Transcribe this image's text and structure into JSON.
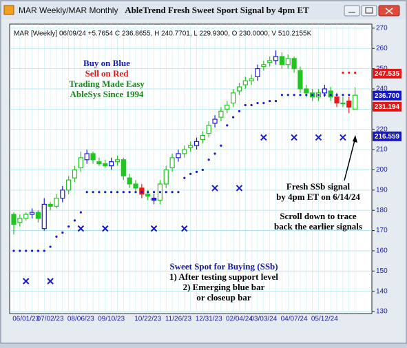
{
  "chart_data": {
    "type": "candlestick",
    "window_title": "MAR Weekly/MAR Monthly",
    "title": "AbleTrend Fresh Sweet Sport Signal by 4pm ET",
    "info": "MAR [Weekly] 06/09/24  +5.7654 C 236.8655, H 240.7701, L 229.9300, O 230.0000, V 510.2155K",
    "categories": [
      null,
      null,
      "06/01/23",
      null,
      null,
      null,
      "07/02/23",
      null,
      null,
      null,
      null,
      "08/06/23",
      null,
      null,
      null,
      null,
      "09/10/23",
      null,
      null,
      null,
      null,
      null,
      "10/22/23",
      null,
      null,
      null,
      null,
      "11/26/23",
      null,
      null,
      null,
      null,
      "12/31/23",
      null,
      null,
      null,
      null,
      "02/04/24",
      null,
      null,
      null,
      "03/03/24",
      null,
      null,
      null,
      null,
      "04/07/24",
      null,
      null,
      null,
      null,
      "05/12/24",
      null,
      null,
      null,
      null,
      null
    ],
    "open": [
      178,
      174,
      176,
      178,
      179,
      171,
      183,
      182,
      186,
      190,
      196,
      201,
      205,
      208,
      204,
      203,
      202,
      204,
      205,
      196,
      193,
      191,
      188,
      186,
      185,
      193,
      201,
      206,
      208,
      211,
      212,
      215,
      218,
      223,
      226,
      230,
      233,
      239,
      242,
      244,
      246,
      251,
      253,
      254,
      256,
      252,
      255,
      249,
      240,
      238,
      236,
      238,
      239,
      236,
      233,
      234,
      230
    ],
    "high": [
      179,
      178,
      179,
      181,
      180,
      186,
      184,
      188,
      192,
      197,
      202,
      209,
      210,
      209,
      206,
      205,
      206,
      207,
      206,
      198,
      195,
      193,
      190,
      188,
      195,
      202,
      208,
      210,
      212,
      214,
      216,
      219,
      224,
      227,
      231,
      234,
      240,
      243,
      246,
      247,
      252,
      254,
      256,
      259,
      258,
      257,
      256,
      251,
      242,
      240,
      240,
      242,
      241,
      238,
      236,
      236,
      240.7701
    ],
    "low": [
      168,
      172,
      175,
      176,
      174,
      170,
      180,
      181,
      184,
      188,
      194,
      199,
      203,
      203,
      202,
      201,
      200,
      202,
      195,
      191,
      189,
      186,
      185,
      183,
      183,
      191,
      199,
      204,
      206,
      209,
      210,
      213,
      216,
      221,
      224,
      228,
      231,
      237,
      240,
      242,
      244,
      249,
      251,
      252,
      250,
      250,
      248,
      238,
      236,
      234,
      234,
      236,
      234,
      231,
      231,
      228,
      229.93
    ],
    "close": [
      173,
      176,
      178,
      179,
      176,
      183,
      182,
      186,
      190,
      195,
      200,
      206,
      208,
      205,
      203,
      202,
      204,
      205,
      197,
      193,
      191,
      188,
      187,
      185,
      193,
      200,
      206,
      208,
      210,
      212,
      214,
      217,
      222,
      225,
      229,
      232,
      238,
      241,
      244,
      245,
      250,
      252,
      254,
      256,
      252,
      255,
      250,
      240,
      238,
      236,
      238,
      240,
      236,
      233,
      233,
      231,
      236.8655
    ],
    "bar_colors": [
      "#22c422",
      "#22c422",
      "#22c422",
      "#1818e0",
      "#22c422",
      "#1818e0",
      "#22c422",
      "#22c422",
      "#1818e0",
      "#22c422",
      "#22c422",
      "#22c422",
      "#1818e0",
      "#22c422",
      "#22c422",
      "#22c422",
      "#1818e0",
      "#22c422",
      "#22c422",
      "#22c422",
      "#22c422",
      "#e81818",
      "#22c422",
      "#1818e0",
      "#22c422",
      "#22c422",
      "#22c422",
      "#1818e0",
      "#22c422",
      "#22c422",
      "#1818e0",
      "#22c422",
      "#22c422",
      "#1818e0",
      "#22c422",
      "#22c422",
      "#22c422",
      "#22c422",
      "#22c422",
      "#22c422",
      "#1818e0",
      "#22c422",
      "#22c422",
      "#1818e0",
      "#22c422",
      "#22c422",
      "#22c422",
      "#22c422",
      "#22c422",
      "#22c422",
      "#22c422",
      "#1818e0",
      "#22c422",
      "#e81818",
      "#22c422",
      "#e81818",
      "#22c422"
    ],
    "support": [
      160,
      160,
      160,
      160,
      160,
      160,
      162,
      167,
      169,
      172,
      175,
      179,
      189,
      189,
      189,
      189,
      189,
      189,
      189,
      189,
      189,
      189,
      189,
      189,
      189,
      189,
      189,
      189,
      196,
      198,
      199,
      200,
      205,
      208,
      212,
      222,
      226,
      229,
      232,
      232,
      233,
      233,
      234,
      234,
      237,
      237,
      237,
      237,
      237,
      237,
      237,
      237,
      237,
      237,
      237,
      237,
      null
    ],
    "support_color": "#1818d0",
    "resistance": [
      null,
      null,
      null,
      null,
      null,
      null,
      null,
      null,
      null,
      null,
      null,
      null,
      null,
      null,
      null,
      null,
      null,
      null,
      null,
      null,
      null,
      null,
      null,
      null,
      null,
      null,
      null,
      null,
      null,
      null,
      null,
      null,
      null,
      null,
      null,
      null,
      null,
      null,
      null,
      null,
      null,
      null,
      null,
      null,
      null,
      null,
      null,
      null,
      null,
      null,
      null,
      null,
      null,
      null,
      248,
      248,
      248
    ],
    "resistance_color": "#e82020",
    "signals": [
      null,
      null,
      145,
      null,
      null,
      null,
      145,
      null,
      null,
      null,
      null,
      171,
      null,
      null,
      null,
      171,
      null,
      null,
      null,
      null,
      null,
      null,
      null,
      171,
      null,
      null,
      null,
      null,
      171,
      null,
      null,
      null,
      null,
      191,
      null,
      null,
      null,
      191,
      null,
      null,
      null,
      216,
      null,
      null,
      null,
      null,
      216,
      null,
      null,
      null,
      216,
      null,
      null,
      null,
      216,
      null,
      null
    ],
    "signal_color": "#1818c0",
    "ylim": [
      129,
      272
    ],
    "yticks": [
      130,
      140,
      150,
      160,
      170,
      180,
      190,
      200,
      210,
      220,
      230,
      240,
      250,
      260,
      270
    ],
    "grid": true,
    "price_labels": [
      {
        "value": 247.535,
        "label": "247.535",
        "color": "#e01818"
      },
      {
        "value": 236.7,
        "label": "236.700",
        "color": "#1818c0"
      },
      {
        "value": 231.194,
        "label": "231.194",
        "color": "#e01818"
      },
      {
        "value": 216.559,
        "label": "216.559",
        "color": "#1818c0"
      }
    ],
    "annotations": [
      {
        "text": "Buy on Blue",
        "color": "#1818c0"
      },
      {
        "text": "Sell on Red",
        "color": "#e01818"
      },
      {
        "text": "Trading Made Easy",
        "color": "#1a8a1a"
      },
      {
        "text": "AbleSys Since 1994",
        "color": "#1a8a1a"
      },
      {
        "text": "Fresh SSb signal",
        "color": "#000000"
      },
      {
        "text": "by 4pm ET on 6/14/24",
        "color": "#000000"
      },
      {
        "text": "Scroll down to trace",
        "color": "#000000"
      },
      {
        "text": "back the earlier signals",
        "color": "#000000"
      },
      {
        "text": "Sweet Spot for Buying (SSb)",
        "color": "#1818a0"
      },
      {
        "text": "1) After testing support level",
        "color": "#000000"
      },
      {
        "text": "2) Emerging blue bar",
        "color": "#000000"
      },
      {
        "text": "or closeup bar",
        "color": "#000000"
      }
    ]
  }
}
